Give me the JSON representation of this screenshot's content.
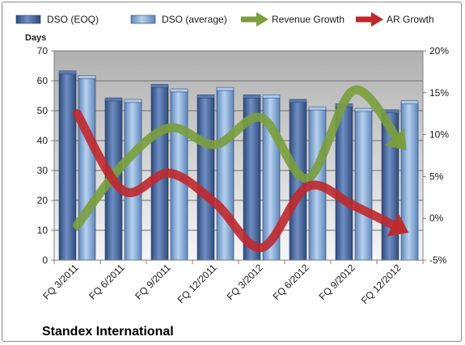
{
  "chart_data": {
    "type": "bar",
    "title": "",
    "company": "Standex International",
    "y_left_label": "Days",
    "y_left_range": [
      0,
      70
    ],
    "y_left_ticks": [
      "0",
      "10",
      "20",
      "30",
      "40",
      "50",
      "60",
      "70"
    ],
    "y_right_range": [
      -5,
      20
    ],
    "y_right_ticks": [
      "-5%",
      "0%",
      "5%",
      "10%",
      "15%",
      "20%"
    ],
    "grid": true,
    "legend_position": "top",
    "categories": [
      "FQ 3/2011",
      "FQ 6/2011",
      "FQ 9/2011",
      "FQ 12/2011",
      "FQ 3/2012",
      "FQ 6/2012",
      "FQ 9/2012",
      "FQ 12/2012"
    ],
    "series": [
      {
        "name": "DSO (EOQ)",
        "type": "bar",
        "axis": "left",
        "color": "#4a6aa0",
        "values": [
          62.5,
          53.5,
          58,
          54.5,
          54.5,
          53,
          51.5,
          49.5
        ]
      },
      {
        "name": "DSO (average)",
        "type": "bar",
        "axis": "left",
        "color": "#88aed8",
        "values": [
          61,
          53,
          56.5,
          57,
          54.5,
          50.5,
          50,
          52.5
        ]
      },
      {
        "name": "Revenue Growth",
        "type": "line",
        "axis": "right",
        "color": "#7a9e3c",
        "values": [
          -0.8,
          6.5,
          10.8,
          8.8,
          12,
          4.8,
          15.3,
          9
        ]
      },
      {
        "name": "AR Growth",
        "type": "line",
        "axis": "right",
        "color": "#c0282c",
        "values": [
          12.5,
          3.3,
          5.4,
          1.8,
          -3.5,
          3.8,
          1.5,
          -1.2
        ]
      }
    ]
  }
}
